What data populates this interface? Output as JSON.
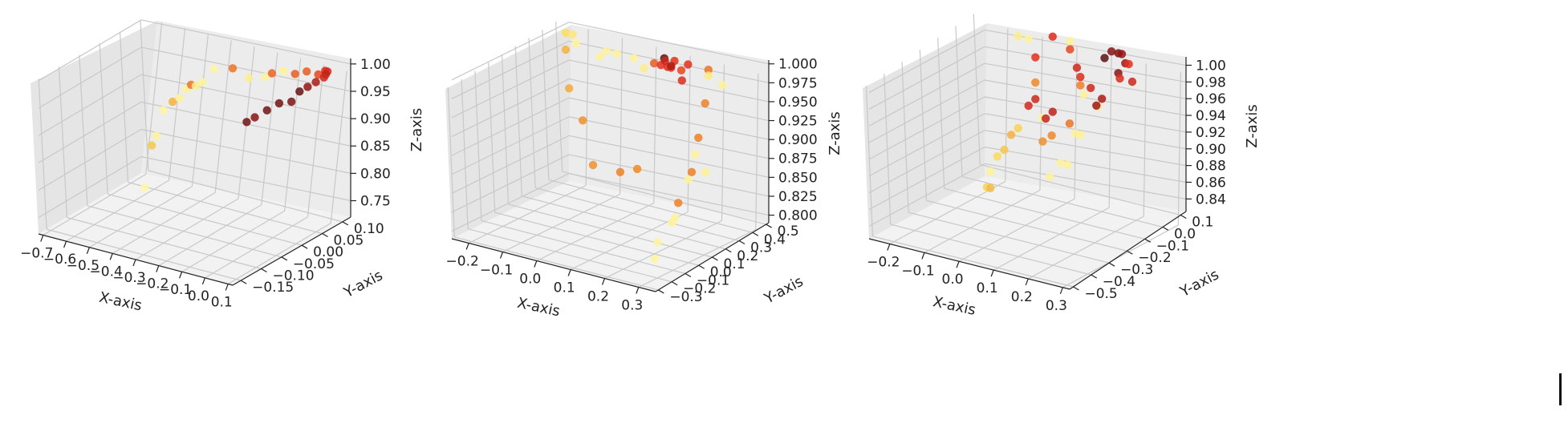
{
  "chart_data": [
    {
      "type": "scatter",
      "xlabel": "X-axis",
      "ylabel": "Y-axis",
      "zlabel": "Z-axis",
      "x_ticks": [
        -0.7,
        -0.6,
        -0.5,
        -0.4,
        -0.3,
        -0.2,
        -0.1,
        0.0,
        0.1
      ],
      "y_ticks": [
        -0.15,
        -0.1,
        -0.05,
        0.0,
        0.05,
        0.1
      ],
      "z_ticks": [
        0.75,
        0.8,
        0.85,
        0.9,
        0.95,
        1.0
      ],
      "x_tick_labels": [
        "−0.7",
        "−0.6",
        "−0.5",
        "−0.4",
        "−0.3",
        "−0.2",
        "−0.1",
        "0.0",
        "0.1"
      ],
      "y_tick_labels": [
        "−0.15",
        "−0.10",
        "−0.05",
        "0.00",
        "0.05",
        "0.10"
      ],
      "z_tick_labels": [
        "0.75",
        "0.80",
        "0.85",
        "0.90",
        "0.95",
        "1.00"
      ],
      "xlim": [
        -0.72,
        0.12
      ],
      "ylim": [
        -0.17,
        0.12
      ],
      "zlim": [
        0.72,
        1.01
      ],
      "grid": true,
      "colormap": "heat: pale-yellow → orange → red → black",
      "points": [
        {
          "x": -0.7,
          "y": 0.08,
          "z": 0.7,
          "c": 0.02
        },
        {
          "x": -0.67,
          "y": 0.08,
          "z": 0.78,
          "c": 0.25
        },
        {
          "x": -0.65,
          "y": 0.08,
          "z": 0.8,
          "c": 0.05
        },
        {
          "x": -0.62,
          "y": 0.08,
          "z": 0.85,
          "c": 0.03
        },
        {
          "x": -0.58,
          "y": 0.08,
          "z": 0.87,
          "c": 0.3
        },
        {
          "x": -0.55,
          "y": 0.08,
          "z": 0.88,
          "c": 0.05
        },
        {
          "x": -0.52,
          "y": 0.08,
          "z": 0.9,
          "c": 0.05
        },
        {
          "x": -0.5,
          "y": 0.08,
          "z": 0.91,
          "c": 0.45
        },
        {
          "x": -0.48,
          "y": 0.08,
          "z": 0.91,
          "c": 0.08
        },
        {
          "x": -0.45,
          "y": 0.08,
          "z": 0.92,
          "c": 0.04
        },
        {
          "x": -0.4,
          "y": 0.08,
          "z": 0.95,
          "c": 0.03
        },
        {
          "x": -0.32,
          "y": 0.08,
          "z": 0.96,
          "c": 0.45
        },
        {
          "x": -0.25,
          "y": 0.08,
          "z": 0.95,
          "c": 0.08
        },
        {
          "x": -0.18,
          "y": 0.08,
          "z": 0.96,
          "c": 0.05
        },
        {
          "x": -0.15,
          "y": 0.08,
          "z": 0.97,
          "c": 0.48
        },
        {
          "x": -0.1,
          "y": 0.08,
          "z": 0.98,
          "c": 0.05
        },
        {
          "x": -0.05,
          "y": 0.08,
          "z": 0.98,
          "c": 0.5
        },
        {
          "x": 0.0,
          "y": 0.08,
          "z": 0.99,
          "c": 0.5
        },
        {
          "x": 0.05,
          "y": 0.08,
          "z": 0.99,
          "c": 0.55
        },
        {
          "x": 0.08,
          "y": 0.08,
          "z": 1.0,
          "c": 0.62
        },
        {
          "x": 0.09,
          "y": 0.08,
          "z": 1.0,
          "c": 0.64
        },
        {
          "x": 0.1,
          "y": 0.07,
          "z": 1.0,
          "c": 0.7
        },
        {
          "x": 0.11,
          "y": 0.06,
          "z": 1.0,
          "c": 0.66
        },
        {
          "x": 0.11,
          "y": 0.04,
          "z": 1.0,
          "c": 0.74
        },
        {
          "x": 0.11,
          "y": 0.02,
          "z": 1.0,
          "c": 0.8
        },
        {
          "x": 0.11,
          "y": 0.0,
          "z": 1.0,
          "c": 0.88
        },
        {
          "x": 0.11,
          "y": -0.02,
          "z": 0.99,
          "c": 0.84
        },
        {
          "x": 0.11,
          "y": -0.05,
          "z": 1.0,
          "c": 0.86
        },
        {
          "x": 0.11,
          "y": -0.08,
          "z": 1.0,
          "c": 0.86
        },
        {
          "x": 0.11,
          "y": -0.11,
          "z": 1.0,
          "c": 0.82
        },
        {
          "x": 0.11,
          "y": -0.13,
          "z": 1.0,
          "c": 0.86
        }
      ]
    },
    {
      "type": "scatter",
      "xlabel": "X-axis",
      "ylabel": "Y-axis",
      "zlabel": "Z-axis",
      "x_ticks": [
        -0.2,
        -0.1,
        0.0,
        0.1,
        0.2,
        0.3
      ],
      "y_ticks": [
        -0.3,
        -0.2,
        -0.1,
        0.0,
        0.1,
        0.2,
        0.3,
        0.4,
        0.5
      ],
      "z_ticks": [
        0.8,
        0.825,
        0.85,
        0.875,
        0.9,
        0.925,
        0.95,
        0.975,
        1.0
      ],
      "x_tick_labels": [
        "−0.2",
        "−0.1",
        "0.0",
        "0.1",
        "0.2",
        "0.3"
      ],
      "y_tick_labels": [
        "−0.3",
        "−0.2",
        "−0.1",
        "0.0",
        "0.1",
        "0.2",
        "0.3",
        "0.4",
        "0.5"
      ],
      "z_tick_labels": [
        "0.800",
        "0.825",
        "0.850",
        "0.875",
        "0.900",
        "0.925",
        "0.950",
        "0.975",
        "1.000"
      ],
      "xlim": [
        -0.25,
        0.35
      ],
      "ylim": [
        -0.32,
        0.52
      ],
      "zlim": [
        0.79,
        1.005
      ],
      "grid": true,
      "colormap": "heat: pale-yellow → orange → red → black",
      "points": [
        {
          "x": -0.22,
          "y": 0.45,
          "z": 0.96,
          "c": 0.3
        },
        {
          "x": -0.2,
          "y": 0.4,
          "z": 0.99,
          "c": 0.18
        },
        {
          "x": -0.18,
          "y": 0.4,
          "z": 0.99,
          "c": 0.12
        },
        {
          "x": -0.17,
          "y": 0.4,
          "z": 0.98,
          "c": 0.05
        },
        {
          "x": -0.21,
          "y": 0.45,
          "z": 0.91,
          "c": 0.32
        },
        {
          "x": -0.15,
          "y": 0.4,
          "z": 0.88,
          "c": 0.38
        },
        {
          "x": -0.1,
          "y": 0.4,
          "z": 0.97,
          "c": 0.06
        },
        {
          "x": -0.08,
          "y": 0.4,
          "z": 0.98,
          "c": 0.05
        },
        {
          "x": -0.05,
          "y": 0.4,
          "z": 0.98,
          "c": 0.05
        },
        {
          "x": 0.0,
          "y": 0.4,
          "z": 0.98,
          "c": 0.05
        },
        {
          "x": -0.08,
          "y": 0.3,
          "z": 0.84,
          "c": 0.38
        },
        {
          "x": 0.0,
          "y": 0.3,
          "z": 0.84,
          "c": 0.42
        },
        {
          "x": 0.05,
          "y": 0.3,
          "z": 0.85,
          "c": 0.4
        },
        {
          "x": 0.03,
          "y": 0.4,
          "z": 0.97,
          "c": 0.08
        },
        {
          "x": 0.06,
          "y": 0.4,
          "z": 0.98,
          "c": 0.5
        },
        {
          "x": 0.08,
          "y": 0.4,
          "z": 0.98,
          "c": 0.6
        },
        {
          "x": 0.09,
          "y": 0.4,
          "z": 0.99,
          "c": 0.9
        },
        {
          "x": 0.1,
          "y": 0.4,
          "z": 0.98,
          "c": 0.62
        },
        {
          "x": 0.1,
          "y": 0.38,
          "z": 0.99,
          "c": 0.66
        },
        {
          "x": 0.11,
          "y": 0.4,
          "z": 0.98,
          "c": 0.58
        },
        {
          "x": 0.12,
          "y": 0.4,
          "z": 0.99,
          "c": 0.6
        },
        {
          "x": 0.13,
          "y": 0.35,
          "z": 0.99,
          "c": 0.74
        },
        {
          "x": 0.14,
          "y": 0.4,
          "z": 0.98,
          "c": 0.55
        },
        {
          "x": 0.15,
          "y": 0.38,
          "z": 0.97,
          "c": 0.62
        },
        {
          "x": 0.16,
          "y": 0.4,
          "z": 0.99,
          "c": 0.6
        },
        {
          "x": 0.22,
          "y": 0.4,
          "z": 0.99,
          "c": 0.45
        },
        {
          "x": 0.24,
          "y": 0.35,
          "z": 0.99,
          "c": 0.1
        },
        {
          "x": 0.25,
          "y": 0.3,
          "z": 0.96,
          "c": 0.42
        },
        {
          "x": 0.25,
          "y": 0.25,
          "z": 0.92,
          "c": 0.42
        },
        {
          "x": 0.25,
          "y": 0.2,
          "z": 0.88,
          "c": 0.42
        },
        {
          "x": 0.25,
          "y": 0.1,
          "z": 0.85,
          "c": 0.42
        },
        {
          "x": 0.3,
          "y": 0.3,
          "z": 0.99,
          "c": 0.06
        },
        {
          "x": 0.3,
          "y": 0.1,
          "z": 0.92,
          "c": 0.05
        },
        {
          "x": 0.32,
          "y": 0.0,
          "z": 0.9,
          "c": 0.05
        },
        {
          "x": 0.33,
          "y": 0.1,
          "z": 0.9,
          "c": 0.06
        },
        {
          "x": 0.32,
          "y": -0.1,
          "z": 0.86,
          "c": 0.05
        },
        {
          "x": 0.33,
          "y": -0.15,
          "z": 0.86,
          "c": 0.05
        },
        {
          "x": 0.34,
          "y": -0.28,
          "z": 0.85,
          "c": 0.04
        },
        {
          "x": 0.34,
          "y": -0.3,
          "z": 0.83,
          "c": 0.04
        }
      ]
    },
    {
      "type": "scatter",
      "xlabel": "X-axis",
      "ylabel": "Y-axis",
      "zlabel": "Z-axis",
      "x_ticks": [
        -0.2,
        -0.1,
        0.0,
        0.1,
        0.2,
        0.3
      ],
      "y_ticks": [
        -0.5,
        -0.4,
        -0.3,
        -0.2,
        -0.1,
        0.0,
        0.1
      ],
      "z_ticks": [
        0.84,
        0.86,
        0.88,
        0.9,
        0.92,
        0.94,
        0.96,
        0.98,
        1.0
      ],
      "x_tick_labels": [
        "−0.2",
        "−0.1",
        "0.0",
        "0.1",
        "0.2",
        "0.3"
      ],
      "y_tick_labels": [
        "−0.5",
        "−0.4",
        "−0.3",
        "−0.2",
        "−0.1",
        "0.0",
        "0.1"
      ],
      "z_tick_labels": [
        "0.84",
        "0.86",
        "0.88",
        "0.90",
        "0.92",
        "0.94",
        "0.96",
        "0.98",
        "1.00"
      ],
      "xlim": [
        -0.26,
        0.32
      ],
      "ylim": [
        -0.52,
        0.13
      ],
      "zlim": [
        0.825,
        1.01
      ],
      "grid": true,
      "colormap": "heat: pale-yellow → orange → red → black",
      "points": [
        {
          "x": -0.24,
          "y": 0.1,
          "z": 0.8,
          "c": 0.22
        },
        {
          "x": -0.23,
          "y": 0.1,
          "z": 0.8,
          "c": 0.28
        },
        {
          "x": -0.23,
          "y": 0.1,
          "z": 0.82,
          "c": 0.05
        },
        {
          "x": -0.21,
          "y": 0.1,
          "z": 0.84,
          "c": 0.2
        },
        {
          "x": -0.19,
          "y": 0.1,
          "z": 0.85,
          "c": 0.25
        },
        {
          "x": -0.17,
          "y": 0.1,
          "z": 0.87,
          "c": 0.3
        },
        {
          "x": -0.15,
          "y": 0.1,
          "z": 0.88,
          "c": 0.22
        },
        {
          "x": -0.12,
          "y": 0.1,
          "z": 0.91,
          "c": 0.65
        },
        {
          "x": -0.1,
          "y": 0.1,
          "z": 0.92,
          "c": 0.66
        },
        {
          "x": -0.1,
          "y": 0.1,
          "z": 0.94,
          "c": 0.4
        },
        {
          "x": -0.08,
          "y": 0.1,
          "z": 0.9,
          "c": 0.05
        },
        {
          "x": -0.07,
          "y": 0.1,
          "z": 0.9,
          "c": 0.68
        },
        {
          "x": -0.05,
          "y": 0.1,
          "z": 0.91,
          "c": 0.7
        },
        {
          "x": -0.15,
          "y": 0.1,
          "z": 0.99,
          "c": 0.08
        },
        {
          "x": -0.12,
          "y": 0.1,
          "z": 0.99,
          "c": 0.05
        },
        {
          "x": -0.1,
          "y": 0.1,
          "z": 0.97,
          "c": 0.6
        },
        {
          "x": -0.05,
          "y": 0.1,
          "z": 1.0,
          "c": 0.62
        },
        {
          "x": 0.0,
          "y": 0.1,
          "z": 1.0,
          "c": 0.05
        },
        {
          "x": 0.0,
          "y": 0.1,
          "z": 0.99,
          "c": 0.55
        },
        {
          "x": 0.02,
          "y": 0.1,
          "z": 0.97,
          "c": 0.66
        },
        {
          "x": 0.03,
          "y": 0.1,
          "z": 0.96,
          "c": 0.62
        },
        {
          "x": 0.03,
          "y": 0.1,
          "z": 0.95,
          "c": 0.42
        },
        {
          "x": 0.04,
          "y": 0.1,
          "z": 0.94,
          "c": 0.06
        },
        {
          "x": 0.06,
          "y": 0.1,
          "z": 0.95,
          "c": 0.66
        },
        {
          "x": 0.08,
          "y": 0.1,
          "z": 0.93,
          "c": 0.1
        },
        {
          "x": 0.1,
          "y": 0.1,
          "z": 0.99,
          "c": 0.9
        },
        {
          "x": 0.12,
          "y": 0.1,
          "z": 1.0,
          "c": 0.82
        },
        {
          "x": 0.14,
          "y": 0.1,
          "z": 1.0,
          "c": 0.84
        },
        {
          "x": 0.15,
          "y": 0.1,
          "z": 1.0,
          "c": 0.8
        },
        {
          "x": 0.16,
          "y": 0.1,
          "z": 0.99,
          "c": 0.78
        },
        {
          "x": 0.15,
          "y": 0.08,
          "z": 0.98,
          "c": 0.82
        },
        {
          "x": 0.17,
          "y": 0.1,
          "z": 0.99,
          "c": 0.6
        },
        {
          "x": 0.18,
          "y": 0.1,
          "z": 0.97,
          "c": 0.66
        },
        {
          "x": 0.17,
          "y": 0.05,
          "z": 0.98,
          "c": 0.62
        },
        {
          "x": 0.17,
          "y": -0.05,
          "z": 0.97,
          "c": 0.74
        },
        {
          "x": 0.18,
          "y": -0.1,
          "z": 0.97,
          "c": 0.78
        },
        {
          "x": 0.18,
          "y": -0.25,
          "z": 0.97,
          "c": 0.45
        },
        {
          "x": 0.18,
          "y": -0.35,
          "z": 0.97,
          "c": 0.4
        },
        {
          "x": 0.18,
          "y": -0.4,
          "z": 0.97,
          "c": 0.38
        },
        {
          "x": 0.16,
          "y": -0.15,
          "z": 0.94,
          "c": 0.06
        },
        {
          "x": 0.17,
          "y": -0.2,
          "z": 0.95,
          "c": 0.06
        },
        {
          "x": 0.18,
          "y": -0.3,
          "z": 0.93,
          "c": 0.05
        },
        {
          "x": 0.2,
          "y": -0.3,
          "z": 0.93,
          "c": 0.05
        },
        {
          "x": 0.2,
          "y": -0.4,
          "z": 0.93,
          "c": 0.06
        }
      ]
    }
  ]
}
